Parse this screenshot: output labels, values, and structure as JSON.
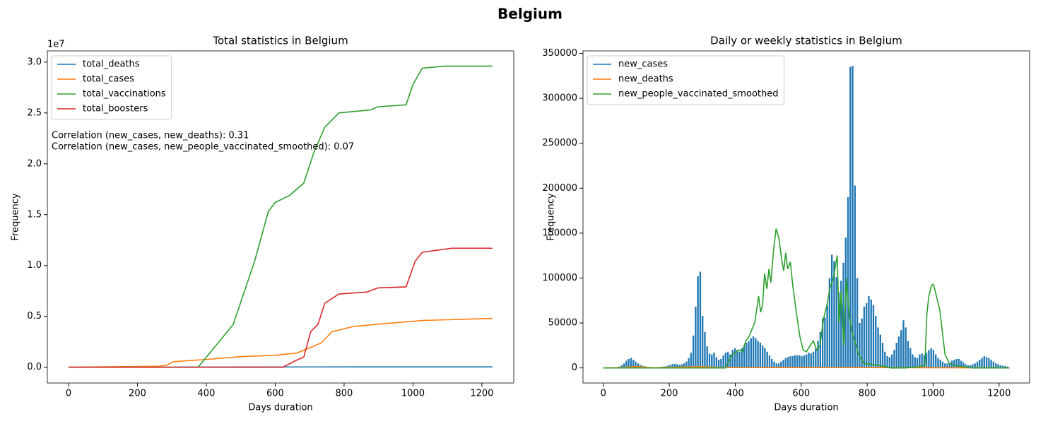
{
  "title": "Belgium",
  "chart_data": [
    {
      "type": "line",
      "title": "Total statistics in Belgium",
      "xlabel": "Days duration",
      "ylabel": "Frequency",
      "y_offset_label": "1e7",
      "xlim": [
        -61.5,
        1292.5
      ],
      "xticks": [
        0,
        200,
        400,
        600,
        800,
        1000,
        1200
      ],
      "ylim": [
        -1550000,
        31100000
      ],
      "yticks": [
        {
          "value": 0,
          "label": "0.0"
        },
        {
          "value": 5000000,
          "label": "0.5"
        },
        {
          "value": 10000000,
          "label": "1.0"
        },
        {
          "value": 15000000,
          "label": "1.5"
        },
        {
          "value": 20000000,
          "label": "2.0"
        },
        {
          "value": 25000000,
          "label": "2.5"
        },
        {
          "value": 30000000,
          "label": "3.0"
        }
      ],
      "legend": "upper left",
      "annotations": [
        "Correlation (new_cases, new_deaths): 0.31",
        "Correlation (new_cases, new_people_vaccinated_smoothed): 0.07"
      ],
      "series": [
        {
          "name": "total_deaths",
          "color": "#1f77b4",
          "x": [
            0,
            100,
            300,
            400,
            700,
            1231
          ],
          "values": [
            0,
            9000,
            14000,
            19000,
            31000,
            33000
          ]
        },
        {
          "name": "total_cases",
          "color": "#ff7f0e",
          "x": [
            0,
            260,
            284,
            305,
            397,
            499,
            601,
            662,
            703,
            734,
            765,
            826,
            888,
            1030,
            1231
          ],
          "values": [
            0,
            100000,
            200000,
            550000,
            760000,
            1040000,
            1180000,
            1390000,
            1940000,
            2400000,
            3500000,
            4000000,
            4200000,
            4600000,
            4800000
          ]
        },
        {
          "name": "total_vaccinations",
          "color": "#2ca02c",
          "x": [
            0,
            376,
            478,
            540,
            580,
            600,
            642,
            683,
            713,
            744,
            785,
            877,
            898,
            980,
            1000,
            1027,
            1092,
            1231
          ],
          "values": [
            0,
            0,
            4200000,
            10400000,
            15300000,
            16200000,
            16900000,
            18100000,
            21200000,
            23600000,
            25000000,
            25300000,
            25600000,
            25800000,
            27800000,
            29400000,
            29600000,
            29600000
          ]
        },
        {
          "name": "total_boosters",
          "color": "#d62728",
          "x": [
            0,
            622,
            662,
            683,
            703,
            724,
            744,
            785,
            867,
            898,
            980,
            1006,
            1027,
            1112,
            1231
          ],
          "values": [
            0,
            0,
            700000,
            1000000,
            3500000,
            4200000,
            6300000,
            7200000,
            7400000,
            7800000,
            7900000,
            10400000,
            11300000,
            11700000,
            11700000
          ]
        }
      ]
    },
    {
      "type": "combo",
      "title": "Daily or weekly statistics in Belgium",
      "xlabel": "Days duration",
      "ylabel": "Frequency",
      "xlim": [
        -61.5,
        1292.5
      ],
      "xticks": [
        0,
        200,
        400,
        600,
        800,
        1000,
        1200
      ],
      "ylim": [
        -16800,
        352800
      ],
      "yticks": [
        0,
        50000,
        100000,
        150000,
        200000,
        250000,
        300000,
        350000
      ],
      "legend": "upper left",
      "bar_width": 5,
      "series": [
        {
          "name": "new_cases",
          "type": "bar",
          "color": "#1f77b4",
          "x": [
            0,
            7,
            14,
            21,
            28,
            35,
            42,
            49,
            56,
            63,
            70,
            77,
            84,
            91,
            98,
            105,
            112,
            119,
            126,
            133,
            140,
            147,
            154,
            161,
            168,
            175,
            182,
            189,
            196,
            203,
            210,
            217,
            224,
            231,
            238,
            245,
            252,
            259,
            266,
            273,
            280,
            287,
            294,
            301,
            308,
            315,
            322,
            329,
            336,
            343,
            350,
            357,
            364,
            371,
            378,
            385,
            392,
            399,
            406,
            413,
            420,
            427,
            434,
            441,
            448,
            455,
            462,
            469,
            476,
            483,
            490,
            497,
            504,
            511,
            518,
            525,
            532,
            539,
            546,
            553,
            560,
            567,
            574,
            581,
            588,
            595,
            602,
            609,
            616,
            623,
            630,
            637,
            644,
            651,
            658,
            665,
            672,
            679,
            686,
            693,
            700,
            707,
            714,
            721,
            728,
            735,
            742,
            749,
            756,
            763,
            770,
            777,
            784,
            791,
            798,
            805,
            812,
            819,
            826,
            833,
            840,
            847,
            854,
            861,
            868,
            875,
            882,
            889,
            896,
            903,
            910,
            917,
            924,
            931,
            938,
            945,
            952,
            959,
            966,
            973,
            980,
            987,
            994,
            1001,
            1008,
            1015,
            1022,
            1029,
            1036,
            1043,
            1050,
            1057,
            1064,
            1071,
            1078,
            1085,
            1092,
            1099,
            1106,
            1113,
            1120,
            1127,
            1134,
            1141,
            1148,
            1155,
            1162,
            1169,
            1176,
            1183,
            1190,
            1197,
            1204,
            1211,
            1218,
            1225
          ],
          "values": [
            0,
            0,
            0,
            0,
            0,
            200,
            600,
            1500,
            3000,
            5000,
            8000,
            10000,
            11000,
            9000,
            7000,
            5000,
            3500,
            2500,
            1800,
            1200,
            900,
            700,
            600,
            700,
            900,
            1200,
            1500,
            1800,
            2500,
            3500,
            4200,
            4500,
            4000,
            3500,
            4000,
            5000,
            7000,
            11000,
            17000,
            36000,
            68000,
            102000,
            107000,
            58000,
            40000,
            24000,
            16000,
            15000,
            17000,
            12000,
            9000,
            10000,
            14000,
            17000,
            18000,
            15000,
            20000,
            22000,
            20000,
            18000,
            22000,
            25000,
            28000,
            30000,
            33000,
            35000,
            33000,
            30000,
            28000,
            25000,
            22000,
            18000,
            14000,
            10000,
            7000,
            5000,
            5000,
            7000,
            9000,
            11000,
            12000,
            13000,
            13000,
            14000,
            14000,
            14000,
            13000,
            14000,
            15000,
            17000,
            16000,
            18000,
            22000,
            30000,
            40000,
            55000,
            56000,
            70000,
            100000,
            126000,
            119000,
            101000,
            84000,
            97000,
            117000,
            145000,
            190000,
            335000,
            336000,
            203000,
            100000,
            50000,
            55000,
            68000,
            72000,
            80000,
            76000,
            70000,
            58000,
            45000,
            37000,
            28000,
            18000,
            13000,
            12000,
            15000,
            20000,
            28000,
            35000,
            42000,
            53000,
            45000,
            30000,
            22000,
            15000,
            12000,
            11000,
            15000,
            16000,
            14000,
            17000,
            20000,
            22000,
            20000,
            15000,
            11000,
            9000,
            7000,
            5000,
            5000,
            6000,
            8000,
            9000,
            10000,
            10000,
            8000,
            6000,
            4000,
            3000,
            3000,
            4000,
            5000,
            7000,
            9000,
            11000,
            13000,
            12000,
            11000,
            9000,
            7000,
            5000,
            4000,
            3000,
            2500,
            2000,
            1500
          ]
        },
        {
          "name": "new_deaths",
          "type": "line",
          "color": "#ff7f0e",
          "x": [
            0,
            60,
            100,
            150,
            280,
            300,
            350,
            700,
            1231
          ],
          "values": [
            0,
            500,
            1500,
            200,
            1200,
            1300,
            300,
            400,
            0
          ]
        },
        {
          "name": "new_people_vaccinated_smoothed",
          "type": "line",
          "color": "#2ca02c",
          "x": [
            0,
            370,
            381,
            391,
            401,
            412,
            422,
            432,
            442,
            453,
            459,
            465,
            471,
            477,
            483,
            489,
            496,
            502,
            508,
            516,
            524,
            532,
            541,
            547,
            553,
            559,
            567,
            575,
            586,
            596,
            606,
            616,
            627,
            637,
            647,
            657,
            668,
            678,
            688,
            698,
            709,
            715,
            721,
            729,
            737,
            745,
            754,
            762,
            774,
            790,
            831,
            872,
            913,
            954,
            975,
            981,
            987,
            995,
            1001,
            1010,
            1020,
            1028,
            1036,
            1049,
            1077,
            1118,
            1231
          ],
          "values": [
            0,
            0,
            8000,
            15000,
            17000,
            20000,
            18000,
            30000,
            35000,
            45000,
            50000,
            65000,
            80000,
            62000,
            70000,
            105000,
            88000,
            110000,
            95000,
            130000,
            155000,
            145000,
            120000,
            108000,
            128000,
            110000,
            118000,
            90000,
            60000,
            35000,
            20000,
            18000,
            25000,
            30000,
            20000,
            25000,
            55000,
            70000,
            90000,
            100000,
            125000,
            50000,
            85000,
            25000,
            100000,
            60000,
            40000,
            30000,
            15000,
            5000,
            3000,
            0,
            0,
            1000,
            3000,
            60000,
            80000,
            92000,
            93000,
            80000,
            65000,
            40000,
            15000,
            5000,
            2000,
            0,
            0
          ]
        }
      ]
    }
  ]
}
